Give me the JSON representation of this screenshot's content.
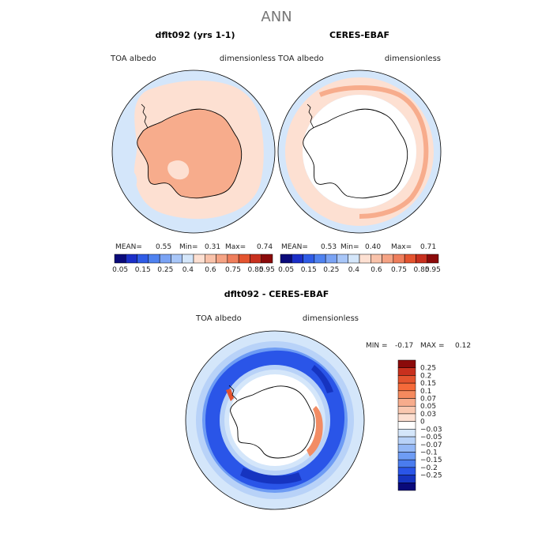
{
  "page_title": "ANN",
  "colors": {
    "ocean_light": "#d4e6fa",
    "land_pos1": "#fde0d2",
    "land_pos2": "#f7ac8c",
    "white": "#ffffff",
    "neg_ring_dark": "#2a55e8",
    "neg_ring_mid": "#6e9cf4",
    "neg_ring_light": "#b8d2f8",
    "pos_patch": "#f28c64",
    "coast": "#000000"
  },
  "chart_data": [
    {
      "type": "polar_map",
      "title": "dflt092 (yrs 1-1)",
      "left_label": "TOA albedo",
      "right_label": "dimensionless",
      "stats": {
        "mean_label": "MEAN=",
        "mean": "0.55",
        "min_label": "Min=",
        "min": "0.31",
        "max_label": "Max=",
        "max": "0.74"
      },
      "colorbar": {
        "orientation": "horizontal",
        "colors": [
          "#0a0a7a",
          "#1b2fc8",
          "#2f5ce6",
          "#4f82f0",
          "#7aa3f4",
          "#a8c6f8",
          "#d4e6fa",
          "#fde0d2",
          "#f9c2aa",
          "#f5a384",
          "#ef7e5c",
          "#e4542f",
          "#c8301e",
          "#8b0a0a"
        ],
        "ticks": [
          "0.05",
          "0.15",
          "0.25",
          "0.4",
          "0.6",
          "0.75",
          "0.85",
          "0.95"
        ],
        "tick_index": [
          0.5,
          2.5,
          4.5,
          6.5,
          8.5,
          10.5,
          12.5,
          13.5
        ]
      }
    },
    {
      "type": "polar_map",
      "title": "CERES-EBAF",
      "left_label": "TOA albedo",
      "right_label": "dimensionless",
      "stats": {
        "mean_label": "MEAN=",
        "mean": "0.53",
        "min_label": "Min=",
        "min": "0.40",
        "max_label": "Max=",
        "max": "0.71"
      },
      "colorbar": {
        "orientation": "horizontal",
        "colors": [
          "#0a0a7a",
          "#1b2fc8",
          "#2f5ce6",
          "#4f82f0",
          "#7aa3f4",
          "#a8c6f8",
          "#d4e6fa",
          "#fde0d2",
          "#f9c2aa",
          "#f5a384",
          "#ef7e5c",
          "#e4542f",
          "#c8301e",
          "#8b0a0a"
        ],
        "ticks": [
          "0.05",
          "0.15",
          "0.25",
          "0.4",
          "0.6",
          "0.75",
          "0.85",
          "0.95"
        ],
        "tick_index": [
          0.5,
          2.5,
          4.5,
          6.5,
          8.5,
          10.5,
          12.5,
          13.5
        ]
      }
    },
    {
      "type": "polar_map",
      "title": "dflt092 - CERES-EBAF",
      "left_label": "TOA albedo",
      "right_label": "dimensionless",
      "stats": {
        "min_label": "MIN =",
        "min": "-0.17",
        "max_label": "MAX =",
        "max": "0.12"
      },
      "colorbar": {
        "orientation": "vertical",
        "colors": [
          "#8b0a0a",
          "#c8301e",
          "#e4542f",
          "#f56a3a",
          "#f58a5e",
          "#f7ac8c",
          "#fac8b0",
          "#fde0d2",
          "#ffffff",
          "#d4e6fa",
          "#b8d2f8",
          "#94b8f6",
          "#6e9cf4",
          "#4a7cee",
          "#2a55e8",
          "#1634c0",
          "#0a0a7a"
        ],
        "ticks": [
          "0.25",
          "0.2",
          "0.15",
          "0.1",
          "0.07",
          "0.05",
          "0.03",
          "0",
          "−0.03",
          "−0.05",
          "−0.07",
          "−0.1",
          "−0.15",
          "−0.2",
          "−0.25"
        ],
        "tick_index": [
          1,
          2,
          3,
          4,
          5,
          6,
          7,
          8,
          9,
          10,
          11,
          12,
          13,
          14,
          15
        ]
      }
    }
  ]
}
